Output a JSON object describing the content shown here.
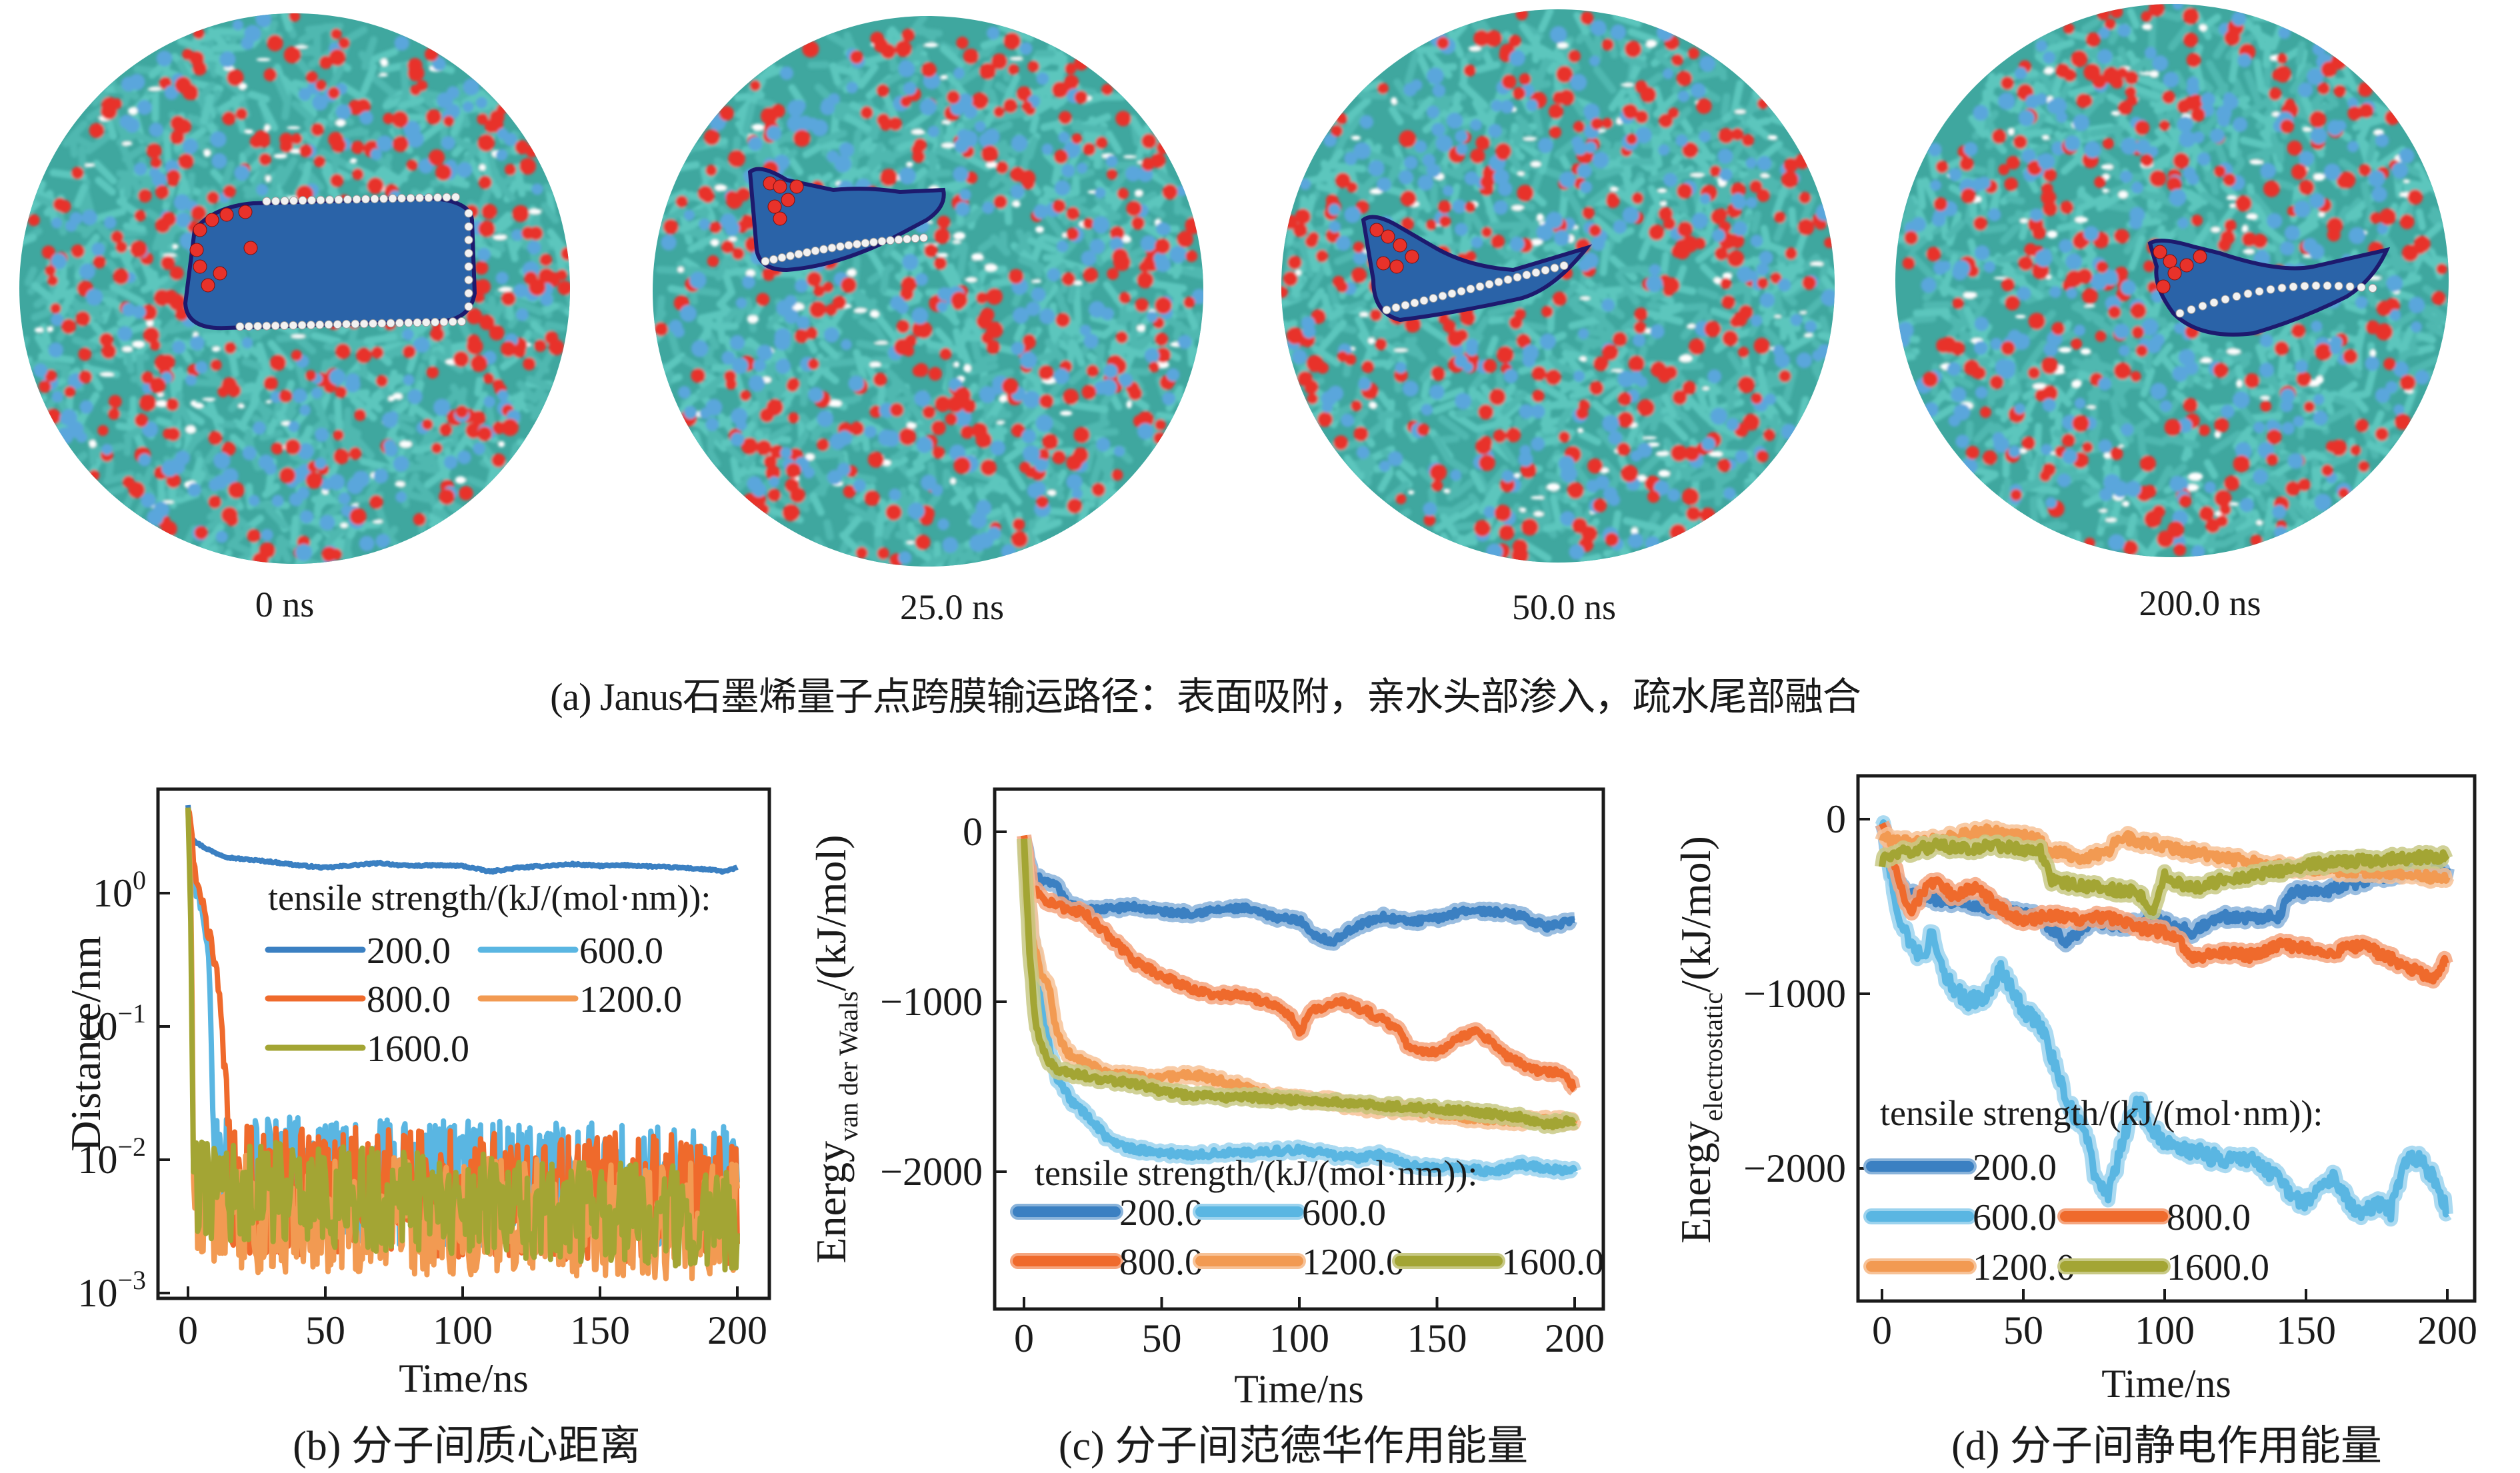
{
  "figure": {
    "panel_a": {
      "caption": "(a) Janus石墨烯量子点跨膜输运路径：表面吸附，亲水头部渗入，疏水尾部融合",
      "snapshots": [
        {
          "label": "0 ns",
          "stage": "surface-adsorption-flat"
        },
        {
          "label": "25.0 ns",
          "stage": "head-insertion"
        },
        {
          "label": "50.0 ns",
          "stage": "head-insertion-bent"
        },
        {
          "label": "200.0 ns",
          "stage": "tail-fusion"
        }
      ],
      "colors": {
        "lipid_tail": "#4fb8b0",
        "lipid_head_oxygen": "#e8322a",
        "lipid_head_nitrogen": "#5aa6dc",
        "graphene": "#2a63a8",
        "graphene_edge": "#1d1a6e",
        "hydrogen": "#f2f2f2"
      }
    }
  },
  "legend_title": "tensile strength/(kJ/(mol·nm)):",
  "series_colors": {
    "200.0": "#3b80c2",
    "600.0": "#5ab6e2",
    "800.0": "#ef6a2c",
    "1200.0": "#f29a52",
    "1600.0": "#a3a534"
  },
  "chart_data": [
    {
      "id": "b",
      "type": "line",
      "caption": "(b) 分子间质心距离",
      "title": "",
      "xlabel": "Time/ns",
      "ylabel": "Distance/nm",
      "yscale": "log",
      "xlim": [
        -7,
        210
      ],
      "ylim": [
        0.0009,
        8
      ],
      "xticks": [
        0,
        50,
        100,
        150,
        200
      ],
      "xtick_labels": [
        "0",
        "50",
        "100",
        "150",
        "200"
      ],
      "yticks": [
        1,
        0.1,
        0.01,
        0.001
      ],
      "ytick_labels": [
        {
          "base": "10",
          "exp": "0"
        },
        {
          "base": "10",
          "exp": "−1"
        },
        {
          "base": "10",
          "exp": "−2"
        },
        {
          "base": "10",
          "exp": "−3"
        }
      ],
      "legend": {
        "title": "tensile strength/(kJ/(mol·nm)):",
        "placement": "upper-right",
        "columns": 2
      },
      "series": [
        {
          "name": "200.0",
          "noise": 0.03,
          "x": [
            0,
            1,
            3,
            6,
            10,
            15,
            20,
            30,
            40,
            50,
            60,
            70,
            80,
            90,
            100,
            110,
            120,
            130,
            140,
            150,
            160,
            170,
            180,
            190,
            195,
            200
          ],
          "y": [
            4.6,
            2.7,
            2.4,
            2.2,
            2.0,
            1.85,
            1.8,
            1.72,
            1.62,
            1.55,
            1.62,
            1.68,
            1.6,
            1.62,
            1.6,
            1.45,
            1.55,
            1.6,
            1.65,
            1.6,
            1.62,
            1.58,
            1.55,
            1.5,
            1.45,
            1.55
          ]
        },
        {
          "name": "600.0",
          "noise": 0.35,
          "x": [
            0,
            2,
            5,
            7,
            8,
            9,
            10,
            200
          ],
          "y": [
            4.6,
            1.3,
            0.75,
            0.4,
            0.2,
            0.03,
            0.007,
            0.006
          ]
        },
        {
          "name": "800.0",
          "noise": 0.35,
          "x": [
            0,
            2,
            4,
            8,
            11,
            12,
            13,
            14,
            16,
            200
          ],
          "y": [
            4.6,
            1.8,
            1.1,
            0.45,
            0.22,
            0.14,
            0.05,
            0.015,
            0.006,
            0.005
          ]
        },
        {
          "name": "1200.0",
          "noise": 0.32,
          "x": [
            0,
            1,
            2,
            3,
            200
          ],
          "y": [
            4.6,
            1.2,
            0.02,
            0.004,
            0.0035
          ]
        },
        {
          "name": "1600.0",
          "noise": 0.28,
          "x": [
            0,
            1,
            2,
            200
          ],
          "y": [
            4.6,
            0.6,
            0.006,
            0.0035
          ]
        }
      ]
    },
    {
      "id": "c",
      "type": "line",
      "caption": "(c) 分子间范德华作用能量",
      "title": "",
      "xlabel": "Time/ns",
      "ylabel": {
        "main": "Energy",
        "sub": "van der Waals",
        "unit": "/(kJ/mol)"
      },
      "yscale": "linear",
      "xlim": [
        -7,
        212
      ],
      "ylim": [
        -2800,
        250
      ],
      "xticks": [
        0,
        50,
        100,
        150,
        200
      ],
      "xtick_labels": [
        "0",
        "50",
        "100",
        "150",
        "200"
      ],
      "yticks": [
        0,
        -1000,
        -2000
      ],
      "ytick_labels": [
        "0",
        "−1000",
        "−2000"
      ],
      "legend": {
        "title": "tensile strength/(kJ/(mol·nm)):",
        "placement": "lower-left",
        "columns": 3
      },
      "series": [
        {
          "name": "200.0",
          "noise": 18,
          "x": [
            0,
            3,
            8,
            12,
            16,
            25,
            40,
            50,
            60,
            70,
            80,
            90,
            100,
            105,
            112,
            120,
            130,
            140,
            150,
            160,
            170,
            180,
            190,
            195,
            200
          ],
          "y": [
            -50,
            -250,
            -300,
            -320,
            -430,
            -460,
            -440,
            -470,
            -480,
            -460,
            -450,
            -500,
            -520,
            -600,
            -650,
            -560,
            -500,
            -530,
            -510,
            -460,
            -470,
            -490,
            -560,
            -540,
            -530
          ]
        },
        {
          "name": "600.0",
          "noise": 20,
          "x": [
            0,
            3,
            6,
            9,
            12,
            18,
            25,
            30,
            35,
            45,
            60,
            75,
            90,
            100,
            120,
            130,
            140,
            150,
            160,
            170,
            180,
            190,
            200
          ],
          "y": [
            -50,
            -600,
            -900,
            -1250,
            -1450,
            -1600,
            -1700,
            -1800,
            -1850,
            -1880,
            -1900,
            -1890,
            -1880,
            -1870,
            -1920,
            -1900,
            -1960,
            -1970,
            -1980,
            -2000,
            -1960,
            -1980,
            -2000
          ]
        },
        {
          "name": "800.0",
          "noise": 22,
          "x": [
            0,
            3,
            8,
            15,
            22,
            30,
            40,
            50,
            60,
            70,
            80,
            90,
            97,
            100,
            105,
            115,
            125,
            135,
            140,
            150,
            160,
            165,
            175,
            185,
            195,
            200
          ],
          "y": [
            -30,
            -330,
            -400,
            -450,
            -480,
            -600,
            -760,
            -850,
            -920,
            -960,
            -960,
            -1020,
            -1080,
            -1180,
            -1050,
            -1000,
            -1060,
            -1150,
            -1280,
            -1300,
            -1200,
            -1170,
            -1320,
            -1400,
            -1420,
            -1500
          ]
        },
        {
          "name": "1200.0",
          "noise": 22,
          "x": [
            0,
            3,
            6,
            9,
            12,
            16,
            22,
            30,
            40,
            50,
            60,
            70,
            80,
            90,
            100,
            110,
            120,
            140,
            160,
            180,
            200
          ],
          "y": [
            -50,
            -600,
            -850,
            -900,
            -1200,
            -1300,
            -1350,
            -1420,
            -1440,
            -1450,
            -1420,
            -1460,
            -1500,
            -1560,
            -1570,
            -1580,
            -1620,
            -1640,
            -1680,
            -1700,
            -1700
          ]
        },
        {
          "name": "1600.0",
          "noise": 20,
          "x": [
            0,
            2,
            4,
            6,
            9,
            12,
            20,
            30,
            40,
            50,
            60,
            70,
            80,
            90,
            100,
            120,
            140,
            160,
            180,
            190,
            200
          ],
          "y": [
            -50,
            -700,
            -1100,
            -1250,
            -1350,
            -1400,
            -1430,
            -1460,
            -1480,
            -1530,
            -1550,
            -1560,
            -1560,
            -1570,
            -1580,
            -1600,
            -1620,
            -1640,
            -1680,
            -1720,
            -1700
          ]
        }
      ]
    },
    {
      "id": "d",
      "type": "line",
      "caption": "(d) 分子间静电作用能量",
      "title": "",
      "xlabel": "Time/ns",
      "ylabel": {
        "main": "Energy",
        "sub": "electrostatic",
        "unit": "/(kJ/mol)"
      },
      "yscale": "linear",
      "xlim": [
        -7,
        210
      ],
      "ylim": [
        -2550,
        250
      ],
      "xticks": [
        0,
        50,
        100,
        150,
        200
      ],
      "xtick_labels": [
        "0",
        "50",
        "100",
        "150",
        "200"
      ],
      "yticks": [
        0,
        -1000,
        -2000
      ],
      "ytick_labels": [
        "0",
        "−1000",
        "−2000"
      ],
      "legend": {
        "title": "tensile strength/(kJ/(mol·nm)):",
        "placement": "lower-left",
        "columns": 2
      },
      "series": [
        {
          "name": "200.0",
          "noise": 30,
          "x": [
            0,
            3,
            8,
            15,
            25,
            35,
            45,
            55,
            62,
            65,
            75,
            85,
            95,
            105,
            110,
            120,
            130,
            140,
            145,
            155,
            165,
            175,
            185,
            195,
            200
          ],
          "y": [
            0,
            -300,
            -420,
            -450,
            -470,
            -500,
            -520,
            -560,
            -650,
            -700,
            -580,
            -620,
            -560,
            -620,
            -650,
            -560,
            -560,
            -560,
            -420,
            -420,
            -380,
            -330,
            -300,
            -280,
            -300
          ]
        },
        {
          "name": "600.0",
          "noise": 45,
          "x": [
            0,
            3,
            6,
            10,
            14,
            18,
            22,
            30,
            38,
            42,
            50,
            55,
            60,
            64,
            68,
            72,
            76,
            80,
            86,
            90,
            95,
            100,
            110,
            120,
            130,
            140,
            145,
            150,
            155,
            160,
            165,
            170,
            175,
            180,
            185,
            190,
            195,
            200
          ],
          "y": [
            0,
            -300,
            -550,
            -700,
            -800,
            -650,
            -900,
            -1050,
            -1000,
            -850,
            -1100,
            -1150,
            -1350,
            -1550,
            -1700,
            -1800,
            -2100,
            -2150,
            -1800,
            -1600,
            -1750,
            -1850,
            -1900,
            -1950,
            -1950,
            -2050,
            -2150,
            -2200,
            -2100,
            -2050,
            -2200,
            -2250,
            -2200,
            -2250,
            -1950,
            -1950,
            -2050,
            -2250
          ]
        },
        {
          "name": "800.0",
          "noise": 30,
          "x": [
            0,
            2,
            5,
            10,
            15,
            20,
            25,
            30,
            35,
            40,
            50,
            60,
            70,
            80,
            90,
            100,
            105,
            110,
            120,
            130,
            140,
            150,
            160,
            170,
            180,
            190,
            195,
            200
          ],
          "y": [
            0,
            -100,
            -300,
            -550,
            -400,
            -350,
            -450,
            -400,
            -400,
            -500,
            -580,
            -550,
            -570,
            -560,
            -620,
            -650,
            -700,
            -800,
            -760,
            -780,
            -720,
            -740,
            -760,
            -720,
            -800,
            -880,
            -900,
            -800
          ]
        },
        {
          "name": "1200.0",
          "noise": 30,
          "x": [
            0,
            3,
            10,
            20,
            30,
            35,
            45,
            55,
            58,
            65,
            72,
            80,
            85,
            95,
            105,
            115,
            125,
            135,
            145,
            160,
            175,
            190,
            200
          ],
          "y": [
            -100,
            -120,
            -130,
            -120,
            -90,
            -60,
            -90,
            -100,
            -180,
            -200,
            -230,
            -180,
            -100,
            -140,
            -180,
            -200,
            -230,
            -260,
            -280,
            -290,
            -300,
            -320,
            -340
          ]
        },
        {
          "name": "1600.0",
          "noise": 30,
          "x": [
            0,
            3,
            10,
            20,
            30,
            40,
            50,
            56,
            60,
            70,
            80,
            90,
            96,
            100,
            110,
            120,
            130,
            140,
            150,
            160,
            170,
            180,
            190,
            200
          ],
          "y": [
            -250,
            -200,
            -180,
            -150,
            -170,
            -150,
            -170,
            -180,
            -350,
            -380,
            -400,
            -420,
            -520,
            -330,
            -400,
            -350,
            -320,
            -300,
            -260,
            -250,
            -240,
            -230,
            -220,
            -220
          ]
        }
      ]
    }
  ]
}
